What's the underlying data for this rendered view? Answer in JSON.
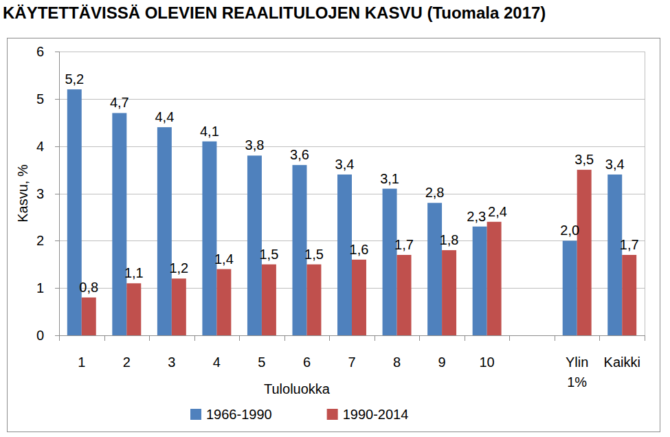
{
  "chart_data": {
    "type": "bar",
    "title": "KÄYTETTÄVISSÄ OLEVIEN REAALITULOJEN KASVU (Tuomala 2017)",
    "x_label": "Tuloluokka",
    "y_label": "Kasvu, %",
    "categories": [
      "1",
      "2",
      "3",
      "4",
      "5",
      "6",
      "7",
      "8",
      "9",
      "10",
      null,
      "Ylin 1%",
      "Kaikki"
    ],
    "series": [
      {
        "name": "1966-1990",
        "color": "#4f81bd",
        "values": [
          5.2,
          4.7,
          4.4,
          4.1,
          3.8,
          3.6,
          3.4,
          3.1,
          2.8,
          2.3,
          null,
          2.0,
          3.4
        ],
        "value_labels": [
          "5,2",
          "4,7",
          "4,4",
          "4,1",
          "3,8",
          "3,6",
          "3,4",
          "3,1",
          "2,8",
          "2,3",
          null,
          "2,0",
          "3,4"
        ]
      },
      {
        "name": "1990-2014",
        "color": "#c0504d",
        "values": [
          0.8,
          1.1,
          1.2,
          1.4,
          1.5,
          1.5,
          1.6,
          1.7,
          1.8,
          2.4,
          null,
          3.5,
          1.7
        ],
        "value_labels": [
          "0,8",
          "1,1",
          "1,2",
          "1,4",
          "1,5",
          "1,5",
          "1,6",
          "1,7",
          "1,8",
          "2,4",
          null,
          "3,5",
          "1,7"
        ]
      }
    ],
    "ylim": [
      0,
      6
    ],
    "yticks": [
      0,
      1,
      2,
      3,
      4,
      5,
      6
    ],
    "grid": true,
    "legend": "bottom",
    "data_labels": true
  }
}
